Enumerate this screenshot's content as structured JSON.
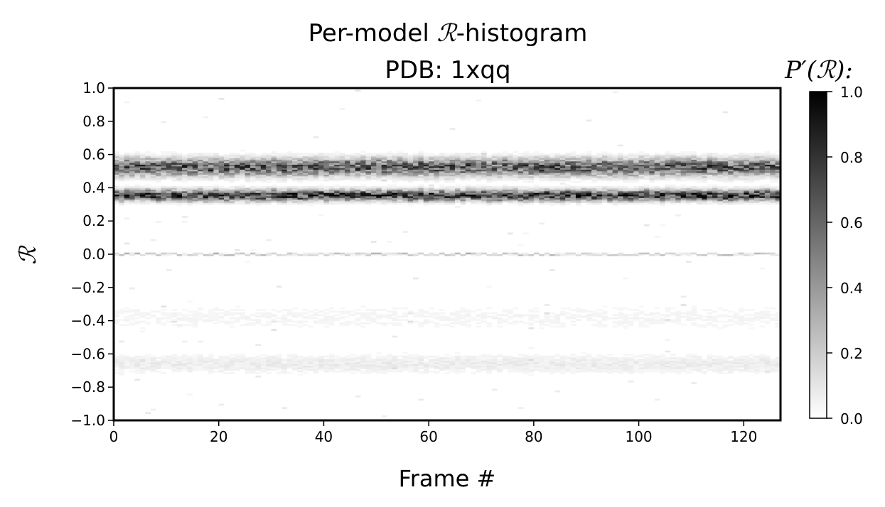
{
  "chart_data": {
    "type": "heatmap",
    "title_line1_prefix": "Per-model ",
    "title_symbol": "ℛ",
    "title_line1_suffix": "-histogram",
    "title_line2": "PDB: 1xqq",
    "xlabel": "Frame #",
    "ylabel": "ℛ",
    "xlim": [
      0,
      127
    ],
    "ylim": [
      -1.0,
      1.0
    ],
    "x_ticks": [
      0,
      20,
      40,
      60,
      80,
      100,
      120
    ],
    "x_tick_labels": [
      "0",
      "20",
      "40",
      "60",
      "80",
      "100",
      "120"
    ],
    "y_ticks": [
      -1.0,
      -0.8,
      -0.6,
      -0.4,
      -0.2,
      0.0,
      0.2,
      0.4,
      0.6,
      0.8,
      1.0
    ],
    "y_tick_labels": [
      "−1.0",
      "−0.8",
      "−0.6",
      "−0.4",
      "−0.2",
      "0.0",
      "0.2",
      "0.4",
      "0.6",
      "0.8",
      "1.0"
    ],
    "n_frames": 127,
    "n_bins": 200,
    "colormap": "gray_r",
    "bands": [
      {
        "center": 0.355,
        "width": 0.022,
        "intensity": 0.85
      },
      {
        "center": 0.525,
        "width": 0.035,
        "intensity": 0.7
      },
      {
        "center": 0.0,
        "width": 0.004,
        "intensity": 0.25
      },
      {
        "center": -0.66,
        "width": 0.04,
        "intensity": 0.08
      },
      {
        "center": -0.38,
        "width": 0.06,
        "intensity": 0.04
      }
    ],
    "colorbar": {
      "label": "P′(ℛ):",
      "range": [
        0.0,
        1.0
      ],
      "ticks": [
        0.0,
        0.2,
        0.4,
        0.6,
        0.8,
        1.0
      ],
      "tick_labels": [
        "0.0",
        "0.2",
        "0.4",
        "0.6",
        "0.8",
        "1.0"
      ]
    },
    "colors": {
      "high": "#000000",
      "low": "#ffffff"
    }
  }
}
